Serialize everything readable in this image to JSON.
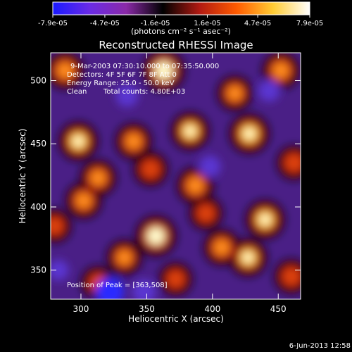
{
  "chart_data": {
    "type": "heatmap",
    "title": "Reconstructed RHESSI Image",
    "xlabel": "Heliocentric X (arcsec)",
    "ylabel": "Heliocentric Y (arcsec)",
    "xlim": [
      277,
      467
    ],
    "ylim": [
      327,
      522
    ],
    "x_ticks": [
      300,
      350,
      400,
      450
    ],
    "y_ticks": [
      350,
      400,
      450,
      500
    ],
    "colorbar": {
      "ticks": [
        "-7.9e-05",
        "-4.7e-05",
        "-1.6e-05",
        "1.6e-05",
        "4.7e-05",
        "7.9e-05"
      ],
      "tick_values": [
        -7.9e-05,
        -4.7e-05,
        -1.6e-05,
        1.6e-05,
        4.7e-05,
        7.9e-05
      ],
      "unit": "(photons cm⁻² s⁻¹ asec⁻²)",
      "colors": [
        "#1a1aff",
        "#6a2be6",
        "#8a2aa8",
        "#000000",
        "#b21a12",
        "#ff5a00",
        "#ffcc33",
        "#ffffff"
      ]
    },
    "annotations": {
      "time_range": "9-Mar-2003 07:30:10.000 to 07:35:50.000",
      "detectors": "Detectors: 4F 5F 6F 7F 8F  Att 0",
      "energy": "Energy Range: 25.0 - 50.0 keV",
      "method": "Clean",
      "counts": "Total counts: 4.80E+03",
      "peak": "Position of Peak = [363,508]"
    },
    "peak": [
      363,
      508
    ],
    "bright_sources": [
      {
        "x": 363,
        "y": 508,
        "intensity": 1.0
      },
      {
        "x": 357,
        "y": 377,
        "intensity": 0.95
      },
      {
        "x": 298,
        "y": 452,
        "intensity": 0.85
      },
      {
        "x": 313,
        "y": 423,
        "intensity": 0.7
      },
      {
        "x": 340,
        "y": 452,
        "intensity": 0.7
      },
      {
        "x": 383,
        "y": 460,
        "intensity": 0.8
      },
      {
        "x": 387,
        "y": 417,
        "intensity": 0.75
      },
      {
        "x": 428,
        "y": 458,
        "intensity": 0.9
      },
      {
        "x": 440,
        "y": 390,
        "intensity": 0.85
      },
      {
        "x": 427,
        "y": 360,
        "intensity": 0.8
      },
      {
        "x": 407,
        "y": 368,
        "intensity": 0.7
      },
      {
        "x": 302,
        "y": 405,
        "intensity": 0.7
      },
      {
        "x": 333,
        "y": 360,
        "intensity": 0.65
      },
      {
        "x": 288,
        "y": 508,
        "intensity": 0.75
      },
      {
        "x": 452,
        "y": 508,
        "intensity": 0.75
      },
      {
        "x": 417,
        "y": 490,
        "intensity": 0.65
      },
      {
        "x": 313,
        "y": 340,
        "intensity": 0.55
      },
      {
        "x": 372,
        "y": 343,
        "intensity": 0.55
      },
      {
        "x": 460,
        "y": 345,
        "intensity": 0.6
      },
      {
        "x": 353,
        "y": 430,
        "intensity": 0.6
      },
      {
        "x": 395,
        "y": 395,
        "intensity": 0.55
      },
      {
        "x": 280,
        "y": 385,
        "intensity": 0.55
      },
      {
        "x": 462,
        "y": 435,
        "intensity": 0.6
      }
    ],
    "negative_regions": [
      {
        "x": 322,
        "y": 333,
        "intensity": -1.0
      },
      {
        "x": 348,
        "y": 333,
        "intensity": -0.7
      },
      {
        "x": 335,
        "y": 488,
        "intensity": -0.6
      },
      {
        "x": 398,
        "y": 432,
        "intensity": -0.55
      },
      {
        "x": 443,
        "y": 492,
        "intensity": -0.55
      },
      {
        "x": 283,
        "y": 350,
        "intensity": -0.45
      }
    ]
  },
  "footer": {
    "date": "6-Jun-2013 12:58"
  }
}
